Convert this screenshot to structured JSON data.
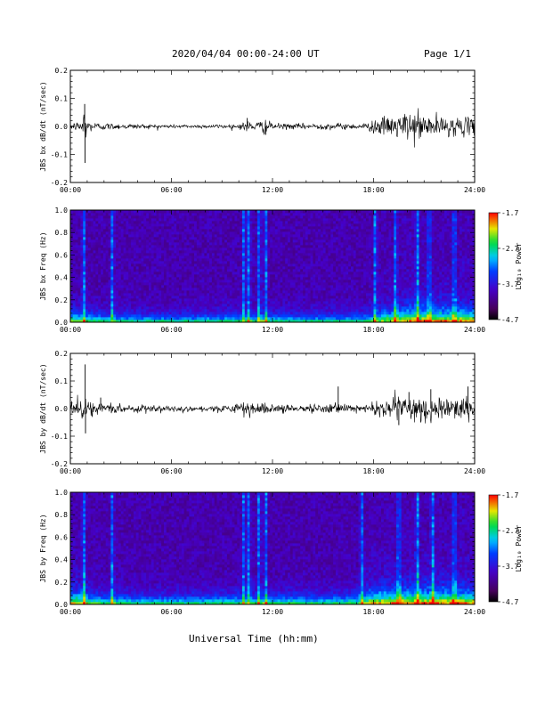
{
  "header": {
    "title": "2020/04/04  00:00-24:00 UT",
    "page": "Page 1/1"
  },
  "x_axis_title": "Universal Time (hh:mm)",
  "chart_data": [
    {
      "type": "line",
      "ylabel": "JBS bx dB/dt (nT/sec)",
      "xticks": [
        "00:00",
        "06:00",
        "12:00",
        "18:00",
        "24:00"
      ],
      "xlim": [
        0,
        24
      ],
      "ylim": [
        -0.2,
        0.2
      ],
      "yticks": [
        "-0.2",
        "-0.1",
        "0.0",
        "0.1",
        "0.2"
      ],
      "envelope": {
        "x_hours": [
          0,
          0.5,
          0.85,
          1,
          1.5,
          2.5,
          4,
          6,
          8,
          10,
          10.2,
          10.5,
          10.9,
          11.2,
          11.6,
          11.9,
          12.3,
          13,
          14,
          15,
          16,
          17,
          17.7,
          18,
          18.5,
          19,
          19.5,
          20,
          20.5,
          21,
          21.5,
          22,
          22.5,
          23,
          23.5,
          24
        ],
        "amplitude": [
          0.012,
          0.015,
          0.07,
          0.02,
          0.014,
          0.01,
          0.008,
          0.006,
          0.006,
          0.007,
          0.012,
          0.022,
          0.012,
          0.018,
          0.025,
          0.012,
          0.01,
          0.009,
          0.009,
          0.01,
          0.01,
          0.009,
          0.012,
          0.025,
          0.028,
          0.032,
          0.04,
          0.045,
          0.048,
          0.043,
          0.035,
          0.032,
          0.03,
          0.03,
          0.028,
          0.025
        ]
      },
      "spikes": [
        {
          "x": 0.85,
          "y": 0.08
        },
        {
          "x": 0.87,
          "y": -0.13
        },
        {
          "x": 10.5,
          "y": 0.03
        },
        {
          "x": 11.6,
          "y": -0.03
        }
      ]
    },
    {
      "type": "heatmap",
      "ylabel": "JBS bx Freq (Hz)",
      "xticks": [
        "00:00",
        "06:00",
        "12:00",
        "18:00",
        "24:00"
      ],
      "xlim": [
        0,
        24
      ],
      "ylim": [
        0.0,
        1.0
      ],
      "yticks": [
        "0.0",
        "0.2",
        "0.4",
        "0.6",
        "0.8",
        "1.0"
      ],
      "colorbar": {
        "label": "Log₁₀ Power",
        "ticks": [
          "-1.7",
          "-2.7",
          "-3.7",
          "-4.7"
        ],
        "range": [
          -4.7,
          -1.7
        ]
      },
      "vertical_features_hours": [
        0.8,
        2.5,
        10.3,
        10.6,
        11.2,
        11.6,
        18.1,
        19.3,
        20.6,
        21.3,
        22.8
      ],
      "activity_envelope_hours": [
        0,
        2,
        6,
        10,
        12,
        16,
        17.5,
        18,
        19,
        20,
        21,
        22,
        23,
        24
      ],
      "activity_levels": [
        0.6,
        0.35,
        0.25,
        0.35,
        0.3,
        0.3,
        0.35,
        0.55,
        0.65,
        0.8,
        0.85,
        0.8,
        0.8,
        0.75
      ]
    },
    {
      "type": "line",
      "ylabel": "JBS by dB/dt (nT/sec)",
      "xticks": [
        "00:00",
        "06:00",
        "12:00",
        "18:00",
        "24:00"
      ],
      "xlim": [
        0,
        24
      ],
      "ylim": [
        -0.2,
        0.2
      ],
      "yticks": [
        "-0.2",
        "-0.1",
        "0.0",
        "0.1",
        "0.2"
      ],
      "envelope": {
        "x_hours": [
          0,
          0.5,
          0.85,
          1,
          1.5,
          2.5,
          4,
          6,
          8,
          10,
          10.2,
          10.5,
          10.9,
          11.2,
          11.6,
          11.9,
          12.3,
          13,
          14,
          15,
          15.8,
          16,
          17,
          17.7,
          18,
          18.5,
          19,
          19.5,
          20,
          20.5,
          21,
          21.5,
          22,
          22.5,
          23,
          23.5,
          24
        ],
        "amplitude": [
          0.025,
          0.03,
          0.05,
          0.025,
          0.02,
          0.015,
          0.012,
          0.01,
          0.01,
          0.012,
          0.02,
          0.025,
          0.015,
          0.02,
          0.025,
          0.015,
          0.012,
          0.012,
          0.012,
          0.014,
          0.02,
          0.014,
          0.012,
          0.014,
          0.025,
          0.03,
          0.035,
          0.04,
          0.045,
          0.045,
          0.045,
          0.04,
          0.038,
          0.035,
          0.04,
          0.04,
          0.035
        ]
      },
      "spikes": [
        {
          "x": 0.88,
          "y": 0.16
        },
        {
          "x": 0.9,
          "y": -0.09
        },
        {
          "x": 1.8,
          "y": 0.04
        },
        {
          "x": 15.9,
          "y": 0.08
        },
        {
          "x": 20.1,
          "y": 0.06
        },
        {
          "x": 21.4,
          "y": 0.07
        },
        {
          "x": 23.6,
          "y": 0.08
        },
        {
          "x": 19.5,
          "y": -0.06
        }
      ]
    },
    {
      "type": "heatmap",
      "ylabel": "JBS by Freq (Hz)",
      "xticks": [
        "00:00",
        "06:00",
        "12:00",
        "18:00",
        "24:00"
      ],
      "xlim": [
        0,
        24
      ],
      "ylim": [
        0.0,
        1.0
      ],
      "yticks": [
        "0.0",
        "0.2",
        "0.4",
        "0.6",
        "0.8",
        "1.0"
      ],
      "colorbar": {
        "label": "Log₁₀ Power",
        "ticks": [
          "-1.7",
          "-2.7",
          "-3.7",
          "-4.7"
        ],
        "range": [
          -4.7,
          -1.7
        ]
      },
      "vertical_features_hours": [
        0.8,
        2.5,
        10.3,
        10.6,
        11.2,
        11.6,
        17.3,
        19.5,
        20.6,
        21.5,
        22.8
      ],
      "activity_envelope_hours": [
        0,
        2,
        6,
        10,
        12,
        13,
        15,
        17,
        18,
        19,
        20,
        21,
        22,
        23,
        24
      ],
      "activity_levels": [
        0.75,
        0.45,
        0.35,
        0.45,
        0.4,
        0.45,
        0.4,
        0.5,
        0.75,
        0.85,
        0.85,
        0.9,
        0.85,
        0.85,
        0.8
      ]
    }
  ]
}
